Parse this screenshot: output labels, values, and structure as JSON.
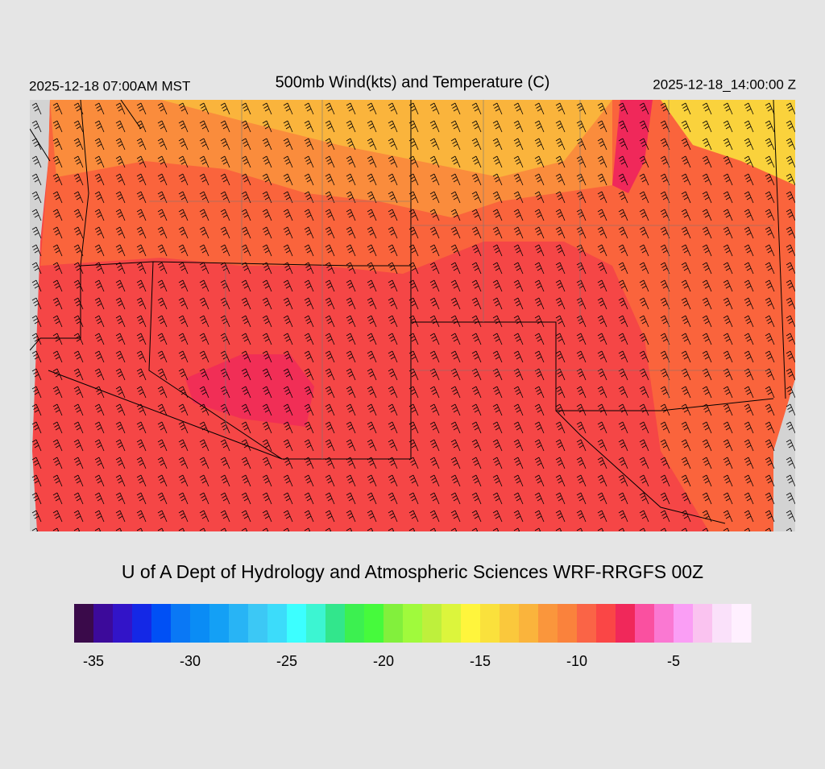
{
  "header": {
    "title": "500mb Wind(kts) and Temperature (C)",
    "local_time": "2025-12-18 07:00AM MST",
    "valid_time": "2025-12-18_14:00:00 Z"
  },
  "footer": "U of A Dept of Hydrology and Atmospheric Sciences WRF-RRGFS 00Z",
  "colorbar": {
    "range": [
      -36,
      -1
    ],
    "ticks": [
      -35,
      -30,
      -25,
      -20,
      -15,
      -10,
      -5
    ],
    "colors": [
      "#3a0a4a",
      "#3c0a9a",
      "#3214c8",
      "#1428e6",
      "#0050f5",
      "#0a78f5",
      "#0a8cf5",
      "#14a0f5",
      "#28b4f5",
      "#3cc8f5",
      "#3cdcfa",
      "#3cffff",
      "#3cf5d2",
      "#32e68c",
      "#3cf050",
      "#46fa3c",
      "#82f03c",
      "#a0fa3c",
      "#bef03c",
      "#dcf53c",
      "#fff53c",
      "#fae13c",
      "#fac83c",
      "#fab43c",
      "#fa963c",
      "#fa823c",
      "#fa6446",
      "#fa4646",
      "#f0285a",
      "#fa50a0",
      "#fa78d2",
      "#fa9ef5",
      "#fac3f0",
      "#fae1fa",
      "#fff0ff"
    ]
  }
}
